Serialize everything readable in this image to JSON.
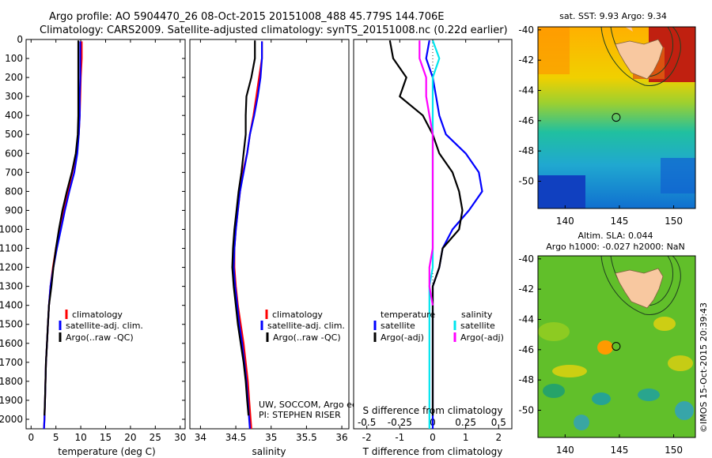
{
  "title": {
    "line1": "Argo profile: AO 5904470_26 08-Oct-2015 20151008_488 45.779S 144.706E",
    "line2": "Climatology: CARS2009. Satellite-adjusted climatology: synTS_20151008.nc (0.22d earlier)"
  },
  "colors": {
    "climatology": "#ff0000",
    "satellite": "#0000ff",
    "argo": "#000000",
    "salinity_satellite": "#00e5ee",
    "salinity_argo": "#ff00ff"
  },
  "chart_data": [
    {
      "id": "temperature",
      "type": "line",
      "xlabel": "temperature (deg C)",
      "ylabel": "",
      "xlim": [
        -1,
        31
      ],
      "ylim": [
        2050,
        0
      ],
      "x_ticks": [
        "0",
        "5",
        "10",
        "15",
        "20",
        "25",
        "30"
      ],
      "y_ticks": [
        "0",
        "100",
        "200",
        "300",
        "400",
        "500",
        "600",
        "700",
        "800",
        "900",
        "1000",
        "1100",
        "1200",
        "1300",
        "1400",
        "1500",
        "1600",
        "1700",
        "1800",
        "1900",
        "2000"
      ],
      "legend": [
        "climatology",
        "satellite-adj. clim.",
        "Argo(..raw -QC)"
      ],
      "series": [
        {
          "name": "climatology",
          "color": "#ff0000",
          "points": [
            [
              10.2,
              10
            ],
            [
              10.2,
              100
            ],
            [
              10.0,
              200
            ],
            [
              9.9,
              300
            ],
            [
              9.8,
              400
            ],
            [
              9.6,
              500
            ],
            [
              9.1,
              600
            ],
            [
              8.3,
              700
            ],
            [
              7.4,
              800
            ],
            [
              6.6,
              900
            ],
            [
              5.7,
              1000
            ],
            [
              5.0,
              1100
            ],
            [
              4.4,
              1200
            ],
            [
              3.9,
              1300
            ],
            [
              3.6,
              1400
            ],
            [
              3.4,
              1500
            ],
            [
              3.2,
              1600
            ],
            [
              3.0,
              1700
            ],
            [
              2.9,
              1800
            ],
            [
              2.8,
              1900
            ],
            [
              2.7,
              2000
            ],
            [
              2.6,
              2050
            ]
          ]
        },
        {
          "name": "satellite-adj. clim.",
          "color": "#0000ff",
          "points": [
            [
              9.9,
              10
            ],
            [
              9.9,
              100
            ],
            [
              9.9,
              200
            ],
            [
              9.8,
              300
            ],
            [
              9.8,
              400
            ],
            [
              9.6,
              500
            ],
            [
              9.3,
              600
            ],
            [
              8.7,
              700
            ],
            [
              7.7,
              800
            ],
            [
              6.8,
              900
            ],
            [
              6.0,
              1000
            ],
            [
              5.2,
              1100
            ],
            [
              4.5,
              1200
            ],
            [
              3.9,
              1300
            ],
            [
              3.6,
              1400
            ],
            [
              3.4,
              1500
            ],
            [
              3.2,
              1600
            ],
            [
              3.0,
              1700
            ],
            [
              2.9,
              1800
            ],
            [
              2.8,
              1900
            ],
            [
              2.7,
              2000
            ],
            [
              2.6,
              2050
            ]
          ]
        },
        {
          "name": "Argo(..raw -QC)",
          "color": "#000000",
          "points": [
            [
              9.5,
              5
            ],
            [
              9.5,
              100
            ],
            [
              9.5,
              200
            ],
            [
              9.5,
              300
            ],
            [
              9.5,
              400
            ],
            [
              9.4,
              500
            ],
            [
              9.0,
              600
            ],
            [
              8.2,
              700
            ],
            [
              7.2,
              800
            ],
            [
              6.3,
              900
            ],
            [
              5.6,
              1000
            ],
            [
              5.0,
              1100
            ],
            [
              4.5,
              1200
            ],
            [
              4.1,
              1300
            ],
            [
              3.6,
              1400
            ],
            [
              3.4,
              1500
            ],
            [
              3.2,
              1600
            ],
            [
              3.0,
              1700
            ],
            [
              2.9,
              1800
            ],
            [
              2.8,
              1900
            ],
            [
              2.7,
              1980
            ]
          ]
        }
      ]
    },
    {
      "id": "salinity",
      "type": "line",
      "xlabel": "salinity",
      "ylabel": "",
      "xlim": [
        33.85,
        36.1
      ],
      "ylim": [
        2050,
        0
      ],
      "x_ticks": [
        "34",
        "34.5",
        "35",
        "35.5",
        "36"
      ],
      "legend": [
        "climatology",
        "satellite-adj. clim.",
        "Argo(..raw -QC)"
      ],
      "annotation": [
        "UW, SOCCOM, Argo equivalent",
        "PI: STEPHEN RISER"
      ],
      "series": [
        {
          "name": "climatology",
          "color": "#ff0000",
          "points": [
            [
              34.87,
              10
            ],
            [
              34.87,
              100
            ],
            [
              34.83,
              200
            ],
            [
              34.79,
              300
            ],
            [
              34.75,
              400
            ],
            [
              34.7,
              500
            ],
            [
              34.66,
              600
            ],
            [
              34.6,
              700
            ],
            [
              34.56,
              800
            ],
            [
              34.53,
              900
            ],
            [
              34.5,
              1000
            ],
            [
              34.48,
              1100
            ],
            [
              34.48,
              1200
            ],
            [
              34.5,
              1300
            ],
            [
              34.53,
              1400
            ],
            [
              34.57,
              1500
            ],
            [
              34.61,
              1600
            ],
            [
              34.64,
              1700
            ],
            [
              34.67,
              1800
            ],
            [
              34.69,
              1900
            ],
            [
              34.71,
              2000
            ],
            [
              34.72,
              2050
            ]
          ]
        },
        {
          "name": "satellite-adj. clim.",
          "color": "#0000ff",
          "points": [
            [
              34.87,
              10
            ],
            [
              34.87,
              100
            ],
            [
              34.85,
              200
            ],
            [
              34.81,
              300
            ],
            [
              34.76,
              400
            ],
            [
              34.7,
              500
            ],
            [
              34.66,
              600
            ],
            [
              34.61,
              700
            ],
            [
              34.56,
              800
            ],
            [
              34.53,
              900
            ],
            [
              34.5,
              1000
            ],
            [
              34.48,
              1100
            ],
            [
              34.47,
              1200
            ],
            [
              34.49,
              1300
            ],
            [
              34.52,
              1400
            ],
            [
              34.55,
              1500
            ],
            [
              34.59,
              1600
            ],
            [
              34.62,
              1700
            ],
            [
              34.65,
              1800
            ],
            [
              34.67,
              1900
            ],
            [
              34.69,
              2000
            ],
            [
              34.7,
              2050
            ]
          ]
        },
        {
          "name": "Argo(..raw -QC)",
          "color": "#000000",
          "points": [
            [
              34.77,
              5
            ],
            [
              34.77,
              100
            ],
            [
              34.72,
              200
            ],
            [
              34.65,
              300
            ],
            [
              34.64,
              400
            ],
            [
              34.64,
              500
            ],
            [
              34.61,
              600
            ],
            [
              34.58,
              700
            ],
            [
              34.54,
              800
            ],
            [
              34.51,
              900
            ],
            [
              34.48,
              1000
            ],
            [
              34.46,
              1100
            ],
            [
              34.45,
              1200
            ],
            [
              34.47,
              1300
            ],
            [
              34.5,
              1400
            ],
            [
              34.53,
              1500
            ],
            [
              34.57,
              1600
            ],
            [
              34.61,
              1700
            ],
            [
              34.64,
              1800
            ],
            [
              34.66,
              1900
            ],
            [
              34.68,
              1980
            ]
          ]
        }
      ]
    },
    {
      "id": "differences",
      "type": "line",
      "xlabel": "T difference from climatology",
      "x2label": "S difference from climatology",
      "xlim": [
        -2.4,
        2.4
      ],
      "ylim": [
        2050,
        0
      ],
      "x_ticks": [
        "-2",
        "-1",
        "0",
        "1",
        "2"
      ],
      "x2_ticks": [
        "-0.5",
        "-0.25",
        "0",
        "0.25",
        "0.5"
      ],
      "legend": {
        "temperature_title": "temperature",
        "salinity_title": "salinity",
        "temperature": [
          "satellite",
          "Argo(-adj)"
        ],
        "salinity": [
          "satellite",
          "Argo(-adj)"
        ]
      },
      "series": [
        {
          "name": "satellite",
          "color": "#0000ff",
          "points": [
            [
              -0.1,
              5
            ],
            [
              -0.2,
              100
            ],
            [
              0.0,
              200
            ],
            [
              0.1,
              300
            ],
            [
              0.2,
              400
            ],
            [
              0.4,
              500
            ],
            [
              1.0,
              600
            ],
            [
              1.4,
              700
            ],
            [
              1.5,
              800
            ],
            [
              1.1,
              900
            ],
            [
              0.6,
              1000
            ],
            [
              0.3,
              1100
            ],
            [
              0.2,
              1200
            ],
            [
              0.0,
              1300
            ],
            [
              0.0,
              1500
            ],
            [
              0.0,
              1700
            ],
            [
              0.0,
              1900
            ],
            [
              0.0,
              2050
            ]
          ]
        },
        {
          "name": "Argo(-adj)",
          "color": "#000000",
          "points": [
            [
              -1.3,
              5
            ],
            [
              -1.2,
              100
            ],
            [
              -0.8,
              200
            ],
            [
              -1.0,
              300
            ],
            [
              -0.3,
              400
            ],
            [
              0.0,
              500
            ],
            [
              0.2,
              600
            ],
            [
              0.6,
              700
            ],
            [
              0.8,
              800
            ],
            [
              0.9,
              900
            ],
            [
              0.8,
              1000
            ],
            [
              0.3,
              1100
            ],
            [
              0.2,
              1200
            ],
            [
              0.0,
              1300
            ],
            [
              0.0,
              1500
            ],
            [
              0.0,
              1700
            ],
            [
              0.0,
              1900
            ],
            [
              0.0,
              1980
            ]
          ]
        },
        {
          "name": "satellite",
          "color": "#00e5ee",
          "points": [
            [
              0.0,
              5
            ],
            [
              0.2,
              100
            ],
            [
              0.0,
              200
            ],
            [
              0.0,
              300
            ],
            [
              0.0,
              400
            ],
            [
              0.0,
              500
            ],
            [
              0.0,
              600
            ],
            [
              0.0,
              700
            ],
            [
              0.0,
              800
            ],
            [
              0.0,
              900
            ],
            [
              0.0,
              1000
            ],
            [
              0.0,
              1100
            ],
            [
              0.0,
              1200
            ],
            [
              -0.1,
              1300
            ],
            [
              -0.1,
              1500
            ],
            [
              -0.1,
              1700
            ],
            [
              -0.1,
              1900
            ],
            [
              -0.1,
              2050
            ]
          ]
        },
        {
          "name": "Argo(-adj)",
          "color": "#ff00ff",
          "points": [
            [
              -0.4,
              5
            ],
            [
              -0.4,
              100
            ],
            [
              -0.2,
              200
            ],
            [
              -0.2,
              300
            ],
            [
              -0.1,
              400
            ],
            [
              0.0,
              500
            ],
            [
              0.0,
              600
            ],
            [
              0.0,
              700
            ],
            [
              0.0,
              800
            ],
            [
              0.0,
              900
            ],
            [
              0.0,
              1000
            ],
            [
              0.0,
              1100
            ],
            [
              -0.1,
              1200
            ],
            [
              -0.1,
              1300
            ],
            [
              0.0,
              1400
            ]
          ]
        }
      ]
    }
  ],
  "maps": [
    {
      "id": "sst",
      "title": "sat. SST: 9.93 Argo: 9.34",
      "x_ticks": [
        "140",
        "145",
        "150"
      ],
      "y_ticks": [
        "-40",
        "-42",
        "-44",
        "-46",
        "-48",
        "-50"
      ],
      "xlim": [
        137.5,
        152
      ],
      "ylim": [
        -51.8,
        -39.8
      ],
      "float_position": [
        144.706,
        -45.779
      ]
    },
    {
      "id": "sla",
      "title_line1": "Altim. SLA: 0.044",
      "title_line2": "Argo h1000: -0.027 h2000: NaN",
      "x_ticks": [
        "140",
        "145",
        "150"
      ],
      "y_ticks": [
        "-40",
        "-42",
        "-44",
        "-46",
        "-48",
        "-50"
      ],
      "xlim": [
        137.5,
        152
      ],
      "ylim": [
        -51.8,
        -39.8
      ],
      "float_position": [
        144.706,
        -45.779
      ]
    }
  ],
  "credit": "©IMOS 15-Oct-2015 20:39:43"
}
